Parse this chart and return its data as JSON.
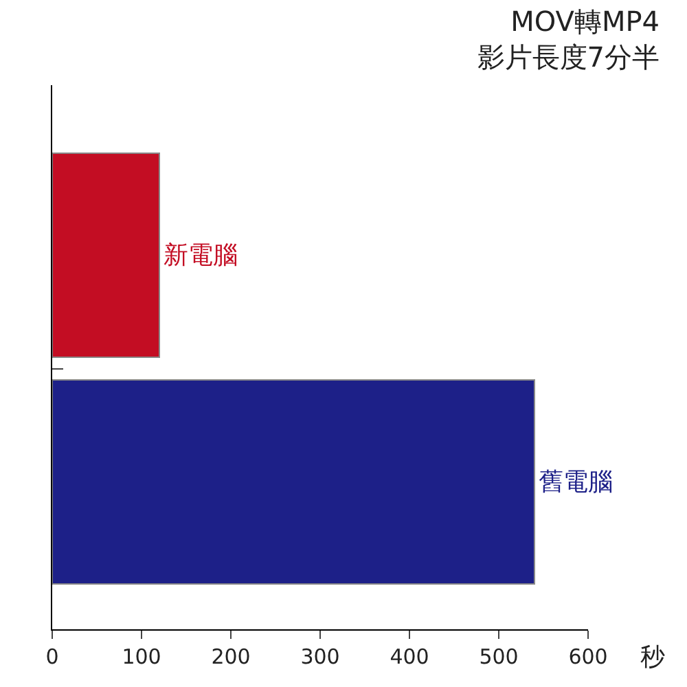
{
  "chart_data": {
    "type": "bar",
    "orientation": "horizontal",
    "title": "MOV轉MP4\n影片長度7分半",
    "xlabel": "秒",
    "categories": [
      "新電腦",
      "舊電腦"
    ],
    "values": [
      120,
      540
    ],
    "colors": [
      "#c30d23",
      "#1d2088"
    ],
    "xlim": [
      0,
      600
    ],
    "xticks": [
      0,
      100,
      200,
      300,
      400,
      500,
      600
    ],
    "tick_labels": "x"
  }
}
